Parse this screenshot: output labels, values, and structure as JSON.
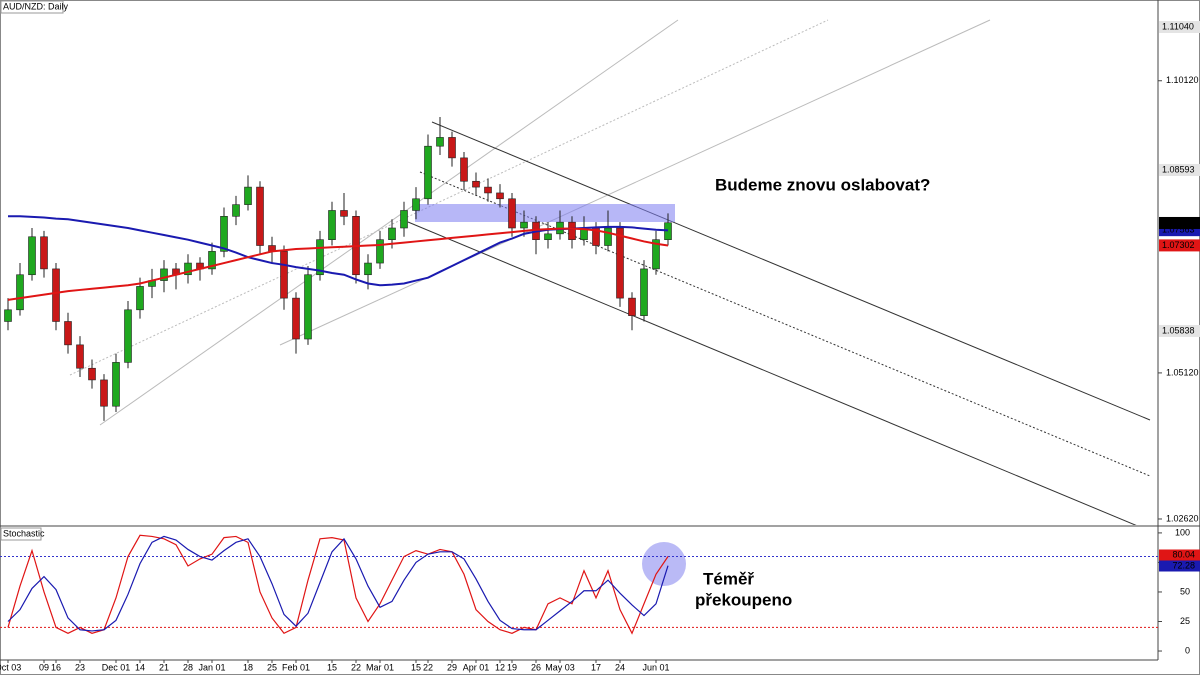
{
  "chart_data": [
    {
      "type": "candlestick",
      "title": "AUD/NZD: Daily",
      "categories": [
        "Oct 03",
        null,
        null,
        "09",
        "16",
        null,
        "23",
        null,
        null,
        "Dec 01",
        null,
        "14",
        null,
        "21",
        null,
        "28",
        null,
        "Jan 01",
        null,
        null,
        "18",
        null,
        "25",
        null,
        "Feb 01",
        null,
        null,
        "15",
        null,
        "22",
        null,
        "Mar 01",
        null,
        null,
        "15",
        "22",
        null,
        "29",
        null,
        "Apr 01",
        null,
        "12",
        "19",
        null,
        "26",
        null,
        "May 03",
        null,
        null,
        "17",
        null,
        "24",
        null,
        null,
        "Jun 01",
        null
      ],
      "open": [
        1.06,
        1.062,
        1.068,
        1.0745,
        1.069,
        1.06,
        1.056,
        1.052,
        1.05,
        1.0455,
        1.053,
        1.062,
        1.066,
        1.067,
        1.069,
        1.068,
        1.07,
        1.069,
        1.072,
        1.078,
        1.08,
        1.083,
        1.073,
        1.072,
        1.064,
        1.057,
        1.068,
        1.074,
        1.079,
        1.078,
        1.068,
        1.07,
        1.074,
        1.076,
        1.079,
        1.081,
        1.09,
        1.0915,
        1.088,
        1.084,
        1.083,
        1.082,
        1.081,
        1.076,
        1.077,
        1.074,
        1.075,
        1.077,
        1.074,
        1.076,
        1.073,
        1.076,
        1.064,
        1.061,
        1.069,
        1.074
      ],
      "high": [
        1.064,
        1.07,
        1.076,
        1.0755,
        1.07,
        1.0615,
        1.0575,
        1.0535,
        1.051,
        1.0545,
        1.0635,
        1.0675,
        1.069,
        1.0705,
        1.07,
        1.0715,
        1.071,
        1.0735,
        1.0795,
        1.0815,
        1.085,
        1.084,
        1.0745,
        1.073,
        1.065,
        1.0695,
        1.0755,
        1.0805,
        1.082,
        1.079,
        1.0715,
        1.0755,
        1.0775,
        1.0805,
        1.083,
        1.092,
        1.095,
        1.0925,
        1.089,
        1.0855,
        1.0845,
        1.0835,
        1.082,
        1.079,
        1.078,
        1.077,
        1.079,
        1.078,
        1.078,
        1.077,
        1.079,
        1.077,
        1.065,
        1.0705,
        1.0755,
        1.0785
      ],
      "low": [
        1.0585,
        1.061,
        1.067,
        1.0675,
        1.0585,
        1.0545,
        1.0505,
        1.0485,
        1.043,
        1.0445,
        1.052,
        1.0605,
        1.064,
        1.065,
        1.0655,
        1.0665,
        1.067,
        1.068,
        1.071,
        1.0765,
        1.079,
        1.0715,
        1.07,
        1.062,
        1.0545,
        1.056,
        1.067,
        1.073,
        1.0765,
        1.0665,
        1.0655,
        1.069,
        1.0725,
        1.0745,
        1.0775,
        1.08,
        1.0885,
        1.0865,
        1.0825,
        1.0815,
        1.0805,
        1.0795,
        1.0745,
        1.0745,
        1.0715,
        1.0725,
        1.074,
        1.0725,
        1.073,
        1.0715,
        1.072,
        1.0625,
        1.0585,
        1.06,
        1.068,
        1.073
      ],
      "close": [
        1.062,
        1.068,
        1.0745,
        1.069,
        1.06,
        1.056,
        1.052,
        1.05,
        1.0455,
        1.053,
        1.062,
        1.066,
        1.067,
        1.069,
        1.068,
        1.07,
        1.069,
        1.072,
        1.078,
        1.08,
        1.083,
        1.073,
        1.072,
        1.064,
        1.057,
        1.068,
        1.074,
        1.079,
        1.078,
        1.068,
        1.07,
        1.074,
        1.076,
        1.079,
        1.081,
        1.09,
        1.0915,
        1.088,
        1.084,
        1.083,
        1.082,
        1.081,
        1.076,
        1.077,
        1.074,
        1.075,
        1.077,
        1.074,
        1.076,
        1.073,
        1.076,
        1.064,
        1.061,
        1.069,
        1.074,
        1.0769
      ],
      "up_color": "#1fa81f",
      "down_color": "#c81818",
      "overlays": [
        {
          "color": "#1a1ab0",
          "values": [
            1.078,
            1.078,
            1.0779,
            1.0778,
            1.0776,
            1.0775,
            1.0772,
            1.0769,
            1.0766,
            1.0763,
            1.076,
            1.0756,
            1.0752,
            1.0748,
            1.0744,
            1.074,
            1.0735,
            1.073,
            1.0725,
            1.0718,
            1.071,
            1.0705,
            1.07,
            1.0697,
            1.0693,
            1.069,
            1.0687,
            1.0683,
            1.068,
            1.0672,
            1.0665,
            1.0662,
            1.0663,
            1.0665,
            1.067,
            1.0675,
            1.0685,
            1.0695,
            1.0705,
            1.0715,
            1.0725,
            1.0735,
            1.0742,
            1.075,
            1.0754,
            1.0757,
            1.0758,
            1.0759,
            1.076,
            1.0761,
            1.0762,
            1.0762,
            1.0761,
            1.0759,
            1.0757,
            1.0756
          ]
        },
        {
          "color": "#e01515",
          "values": [
            1.0637,
            1.064,
            1.0643,
            1.0646,
            1.0649,
            1.0652,
            1.0654,
            1.0656,
            1.0658,
            1.066,
            1.0662,
            1.0665,
            1.067,
            1.0675,
            1.068,
            1.0685,
            1.069,
            1.0695,
            1.07,
            1.0705,
            1.071,
            1.0715,
            1.072,
            1.0722,
            1.0724,
            1.0725,
            1.0726,
            1.0727,
            1.0728,
            1.0729,
            1.073,
            1.0731,
            1.0733,
            1.0735,
            1.0737,
            1.0739,
            1.0741,
            1.0743,
            1.0745,
            1.0747,
            1.0749,
            1.0751,
            1.0753,
            1.0755,
            1.0757,
            1.0758,
            1.0759,
            1.0759,
            1.0758,
            1.0756,
            1.0752,
            1.0747,
            1.0742,
            1.0737,
            1.0733,
            1.073
          ]
        }
      ],
      "ylim": [
        1.02517,
        1.11502
      ],
      "yticks": [
        {
          "value": 1.1012,
          "label": "1.10120"
        },
        {
          "value": 1.0512,
          "label": "1.05120"
        },
        {
          "value": 1.0262,
          "label": "1.02620"
        }
      ],
      "price_labels": [
        {
          "value": 1.1104,
          "label": "1.11040",
          "color": "#e4e4e4",
          "text_color": "#777"
        },
        {
          "value": 1.08593,
          "label": "1.08593",
          "color": "#e4e4e4",
          "text_color": "#777"
        },
        {
          "value": 1.07563,
          "label": "1.07563",
          "color": "#1a1ab0",
          "text_color": "#fff"
        },
        {
          "value": 1.07686,
          "label": "1.07686",
          "color": "#000",
          "text_color": "#fff"
        },
        {
          "value": 1.07302,
          "label": "1.07302",
          "color": "#e01515",
          "text_color": "#fff"
        },
        {
          "value": 1.05838,
          "label": "1.05838",
          "color": "#e4e4e4",
          "text_color": "#000"
        }
      ],
      "annotations": [
        "Budeme znovu oslabovat?",
        "Téměř",
        "překoupeno"
      ]
    },
    {
      "type": "line",
      "title": "Stochastic",
      "series": [
        {
          "color": "#e01515",
          "values": [
            20,
            55,
            85,
            50,
            20,
            15,
            20,
            15,
            18,
            45,
            80,
            98,
            97,
            95,
            90,
            72,
            78,
            82,
            96,
            97,
            92,
            50,
            28,
            15,
            20,
            60,
            95,
            96,
            94,
            45,
            25,
            40,
            60,
            80,
            85,
            82,
            86,
            84,
            65,
            35,
            25,
            18,
            15,
            20,
            18,
            40,
            45,
            40,
            68,
            45,
            68,
            35,
            15,
            40,
            65,
            80.04
          ]
        },
        {
          "color": "#1a1ab0",
          "values": [
            25,
            35,
            53,
            63,
            52,
            28,
            18,
            17,
            18,
            26,
            48,
            74,
            92,
            97,
            94,
            86,
            80,
            77,
            85,
            92,
            95,
            80,
            57,
            31,
            21,
            32,
            58,
            84,
            95,
            78,
            55,
            37,
            42,
            60,
            75,
            82,
            84,
            84,
            78,
            61,
            42,
            26,
            19,
            18,
            18,
            26,
            34,
            42,
            51,
            51,
            60,
            49,
            39,
            30,
            40,
            72.28
          ]
        }
      ],
      "ylim": [
        -7.6,
        105
      ],
      "yticks": [
        100,
        75,
        50,
        25,
        0
      ],
      "levels": [
        80,
        20
      ]
    }
  ]
}
